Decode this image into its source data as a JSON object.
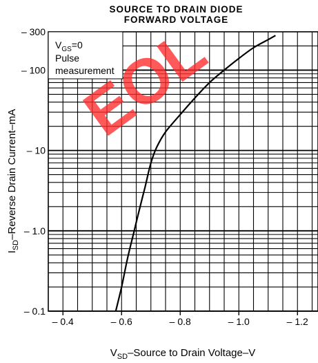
{
  "title_lines": [
    "SOURCE TO DRAIN DIODE",
    "FORWARD VOLTAGE"
  ],
  "watermark": "EOL",
  "chart_data": {
    "type": "line",
    "title": "SOURCE TO DRAIN DIODE FORWARD VOLTAGE",
    "xlabel": {
      "main": "V",
      "sub": "SD",
      "rest": "–Source to Drain Voltage–V"
    },
    "ylabel": {
      "main": "I",
      "sub": "SD",
      "rest": "–Reverse Drain Current–mA"
    },
    "x_direction": "reversed (more negative to the right)",
    "xlim": [
      -0.35,
      -1.27
    ],
    "ylim": [
      0.1,
      300
    ],
    "y_scale": "log",
    "grid": true,
    "x_ticks": [
      -0.4,
      -0.6,
      -0.8,
      -1.0,
      -1.2
    ],
    "x_tick_labels": [
      "– 0.4",
      "– 0.6",
      "– 0.8",
      "– 1.0",
      "– 1.2"
    ],
    "y_ticks": [
      0.1,
      1.0,
      10,
      100,
      300
    ],
    "y_tick_labels": [
      "– 0.1",
      "– 1.0",
      "– 10",
      "– 100",
      "– 300"
    ],
    "annotation": {
      "line1_main": "V",
      "line1_sub": "GS",
      "line1_rest": "=0",
      "line2": "Pulse",
      "line3": "measurement"
    },
    "series": [
      {
        "x": [
          -0.58,
          -0.6,
          -0.62,
          -0.64,
          -0.66,
          -0.68,
          -0.7,
          -0.72,
          -0.75,
          -0.8,
          -0.85,
          -0.9,
          -0.95,
          -1.0,
          -1.05,
          -1.1,
          -1.125
        ],
        "y": [
          0.1,
          0.2,
          0.45,
          0.9,
          1.8,
          3.5,
          7.0,
          11,
          17,
          28,
          45,
          70,
          100,
          140,
          190,
          240,
          270
        ]
      }
    ]
  }
}
